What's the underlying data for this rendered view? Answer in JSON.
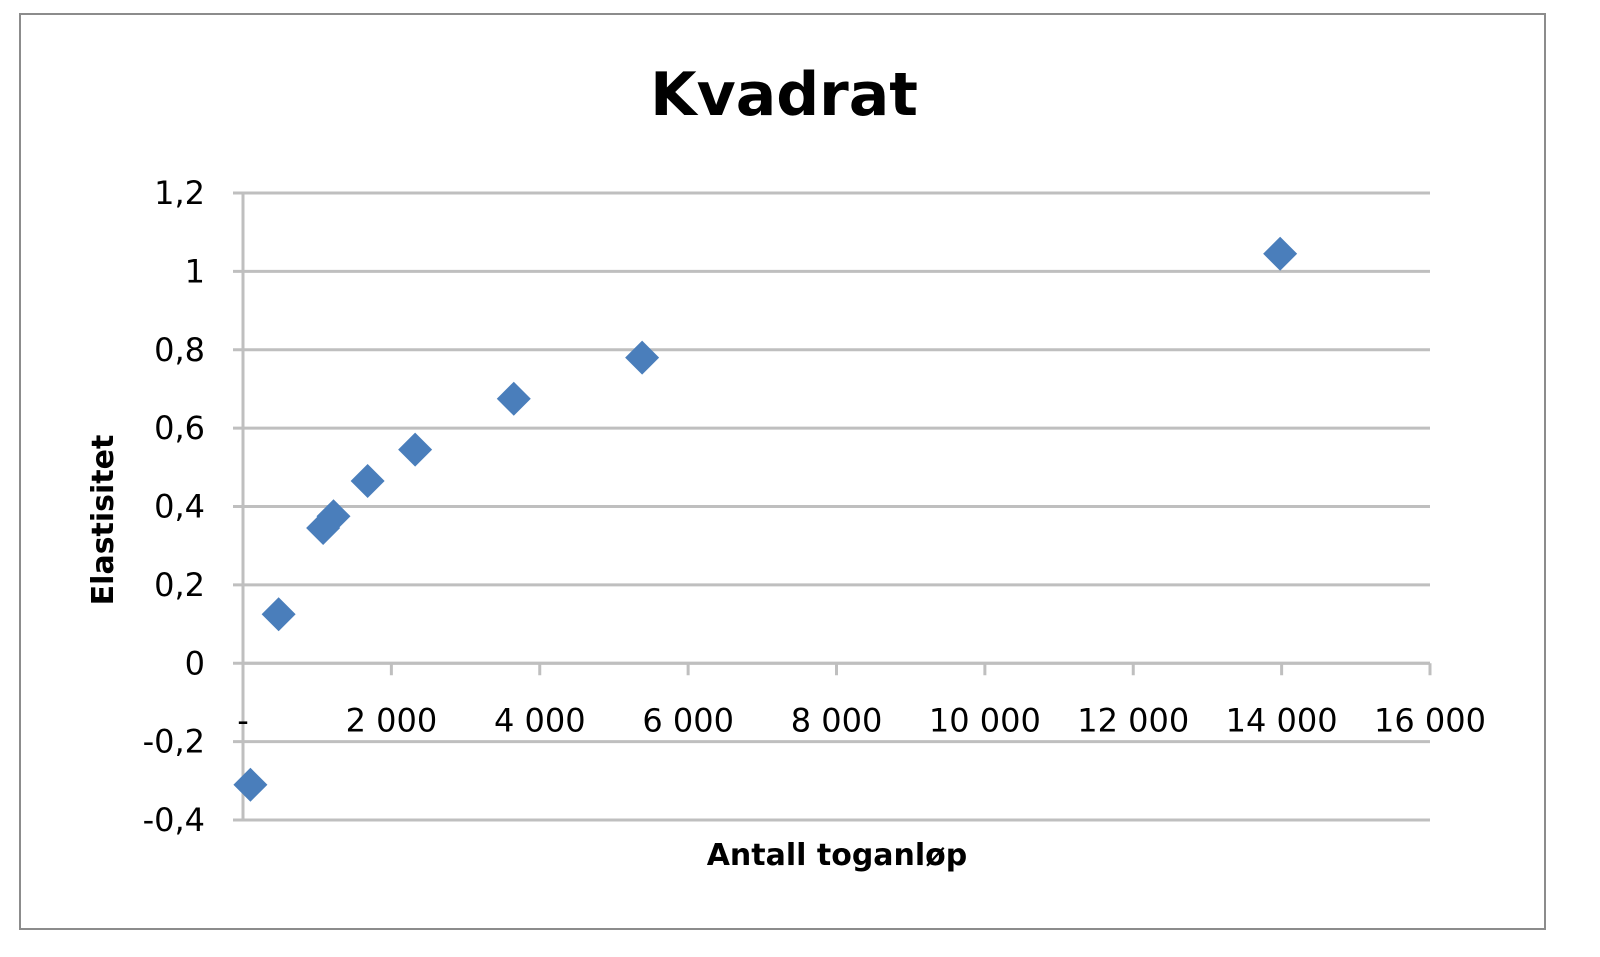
{
  "chart_data": {
    "type": "scatter",
    "title": "Kvadrat",
    "xlabel": "Antall toganløp",
    "ylabel": "Elastisitet",
    "xlim": [
      0,
      16000
    ],
    "ylim": [
      -0.4,
      1.2
    ],
    "x_ticks": [
      {
        "value": 0,
        "label": "-"
      },
      {
        "value": 2000,
        "label": "2 000"
      },
      {
        "value": 4000,
        "label": "4 000"
      },
      {
        "value": 6000,
        "label": "6 000"
      },
      {
        "value": 8000,
        "label": "8 000"
      },
      {
        "value": 10000,
        "label": "10 000"
      },
      {
        "value": 12000,
        "label": "12 000"
      },
      {
        "value": 14000,
        "label": "14 000"
      },
      {
        "value": 16000,
        "label": "16 000"
      }
    ],
    "y_ticks": [
      {
        "value": 1.2,
        "label": "1,2"
      },
      {
        "value": 1.0,
        "label": "1"
      },
      {
        "value": 0.8,
        "label": "0,8"
      },
      {
        "value": 0.6,
        "label": "0,6"
      },
      {
        "value": 0.4,
        "label": "0,4"
      },
      {
        "value": 0.2,
        "label": "0,2"
      },
      {
        "value": 0.0,
        "label": "0"
      },
      {
        "value": -0.2,
        "label": "-0,2"
      },
      {
        "value": -0.4,
        "label": "-0,4"
      }
    ],
    "grid": true,
    "marker": "diamond",
    "color": "#4a7ebb",
    "points": [
      {
        "x": 100,
        "y": -0.31
      },
      {
        "x": 480,
        "y": 0.125
      },
      {
        "x": 1080,
        "y": 0.345
      },
      {
        "x": 1220,
        "y": 0.375
      },
      {
        "x": 1680,
        "y": 0.465
      },
      {
        "x": 2320,
        "y": 0.545
      },
      {
        "x": 3650,
        "y": 0.675
      },
      {
        "x": 5380,
        "y": 0.78
      },
      {
        "x": 13980,
        "y": 1.045
      }
    ]
  }
}
